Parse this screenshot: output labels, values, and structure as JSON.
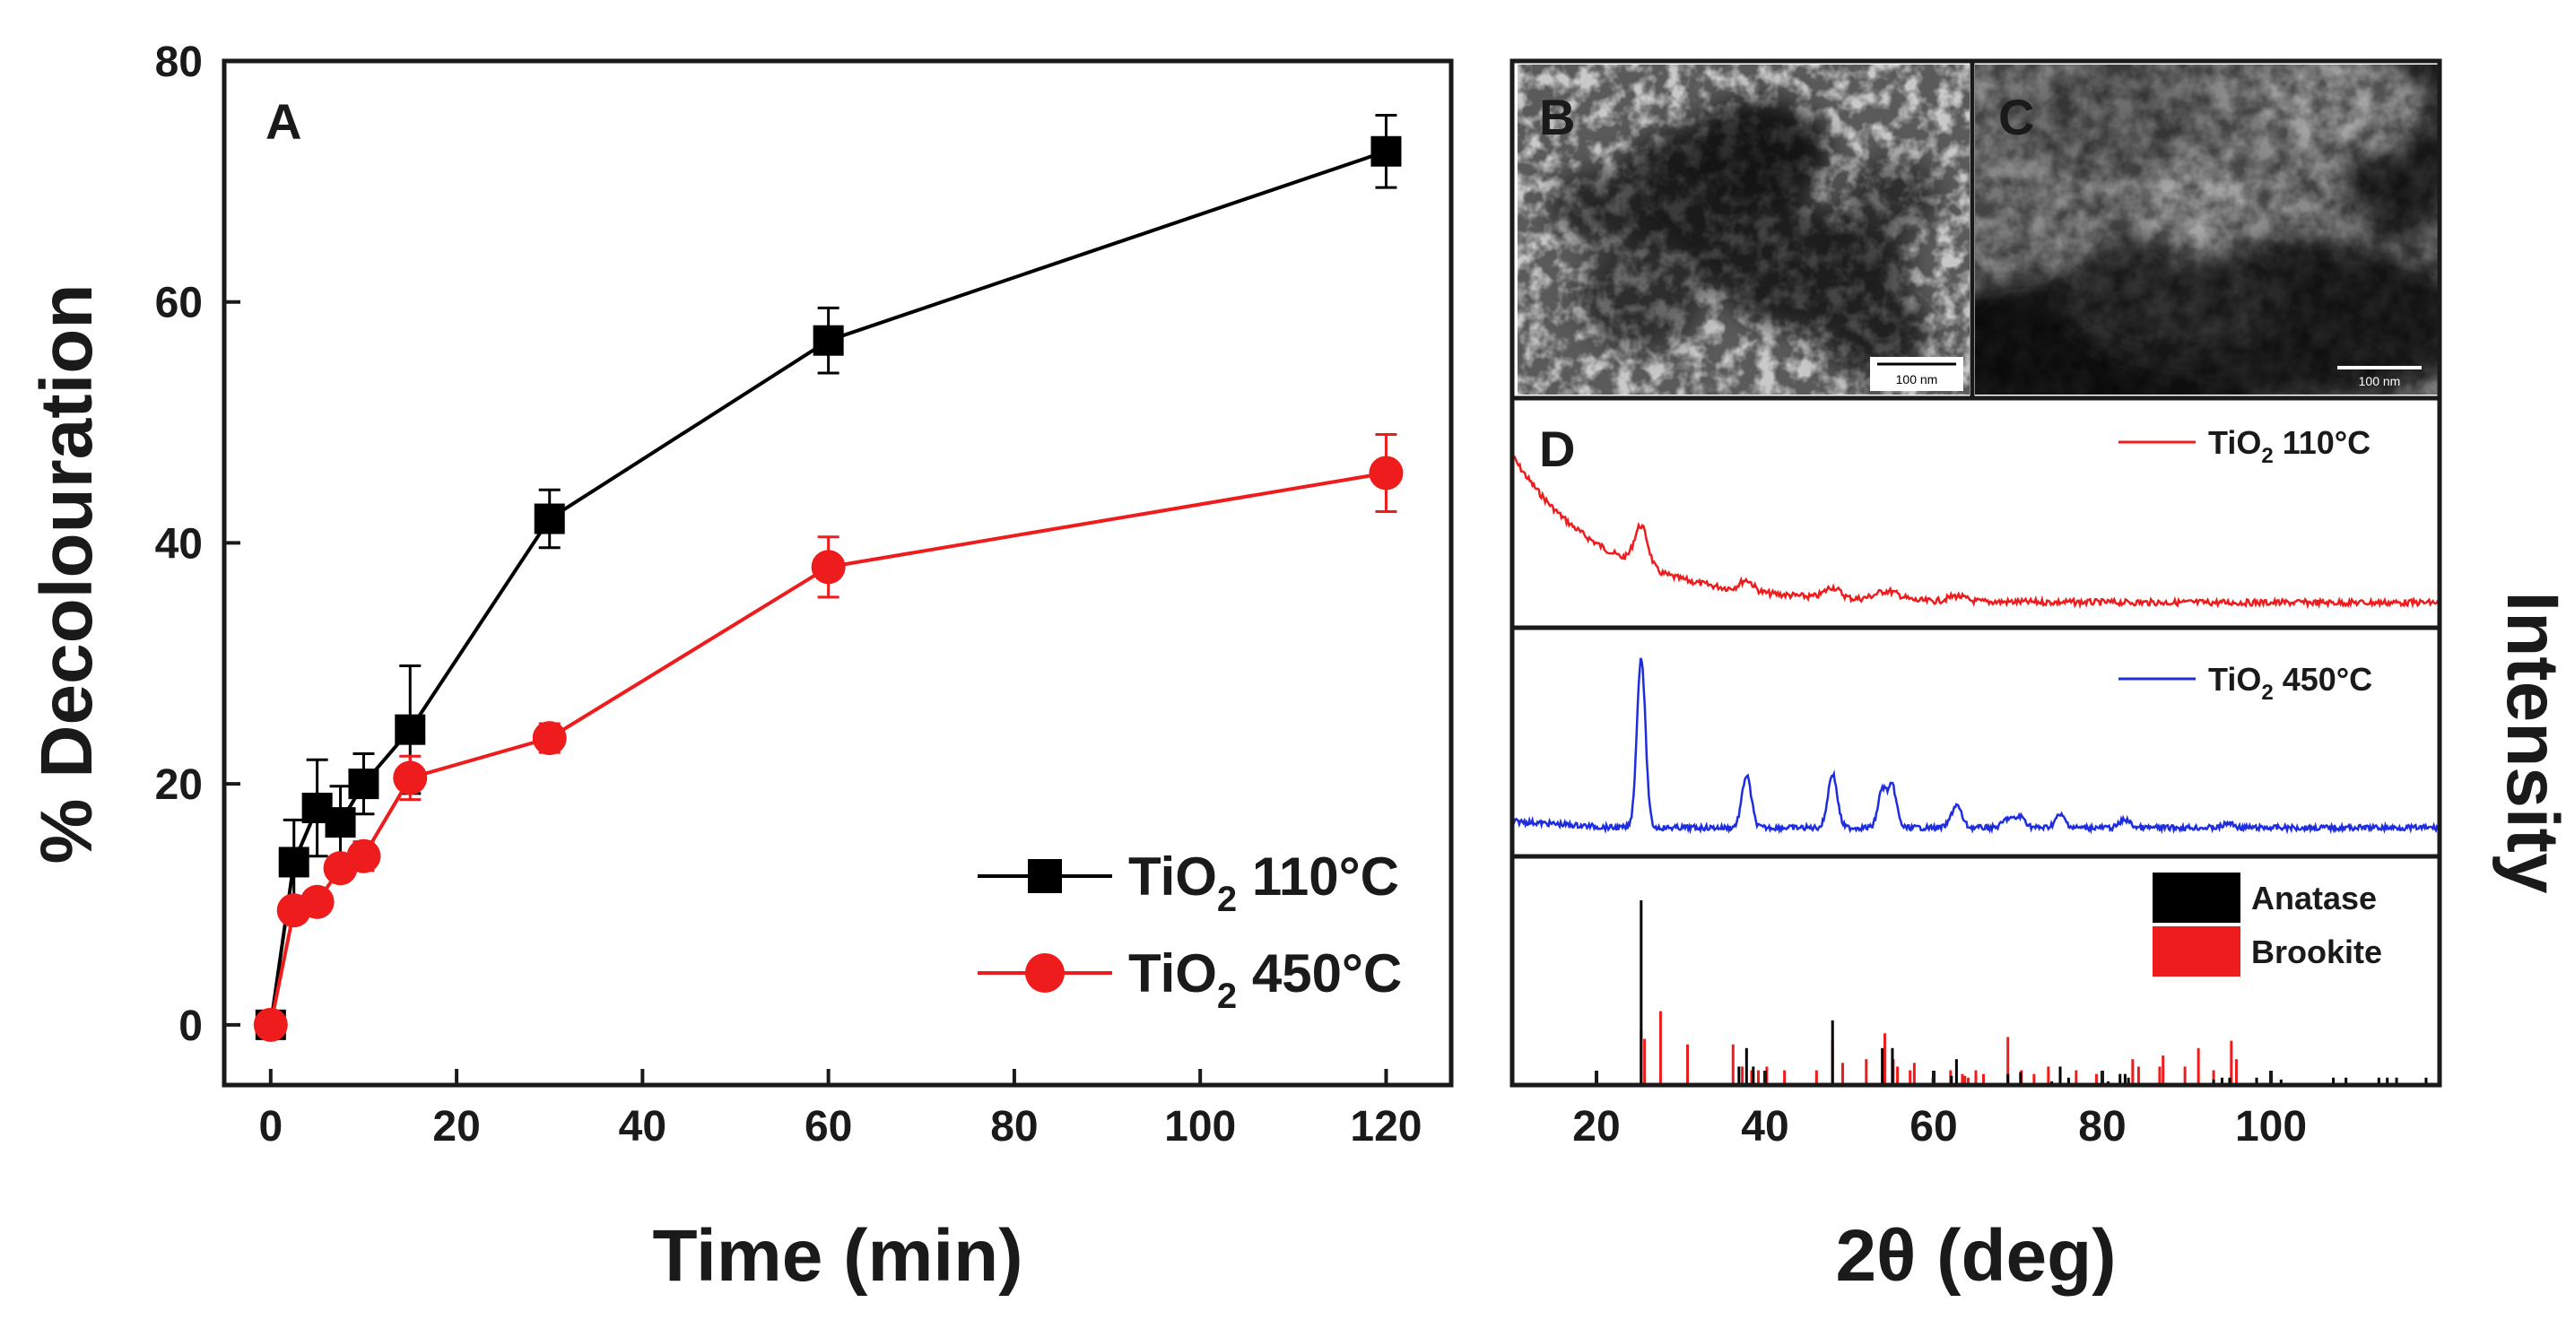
{
  "panels": {
    "A": "A",
    "B": "B",
    "C": "C",
    "D": "D"
  },
  "chart_data": [
    {
      "panel": "A",
      "type": "line",
      "xlabel": "Time (min)",
      "ylabel": "% Decolouration",
      "xlim": [
        -5,
        127
      ],
      "ylim": [
        -5,
        80
      ],
      "xticks": [
        0,
        20,
        40,
        60,
        80,
        100,
        120
      ],
      "yticks": [
        0,
        20,
        40,
        60,
        80
      ],
      "series": [
        {
          "name": "TiO2 110°C",
          "legend_prefix": "TiO",
          "legend_sub": "2",
          "legend_suffix": " 110°C",
          "marker": "square",
          "color": "#000000",
          "x": [
            0,
            2.5,
            5,
            7.5,
            10,
            15,
            30,
            60,
            120
          ],
          "y": [
            0,
            13.5,
            18,
            16.8,
            20,
            24.5,
            42,
            56.8,
            72.5
          ],
          "err": [
            0.5,
            3.5,
            4,
            3,
            2.5,
            5.3,
            2.4,
            2.7,
            3
          ]
        },
        {
          "name": "TiO2 450°C",
          "legend_prefix": "TiO",
          "legend_sub": "2",
          "legend_suffix": " 450°C",
          "marker": "circle",
          "color": "#ee1c1c",
          "x": [
            0,
            2.5,
            5,
            7.5,
            10,
            15,
            30,
            60,
            120
          ],
          "y": [
            0,
            9.5,
            10.2,
            13,
            14,
            20.5,
            23.8,
            38,
            45.8
          ],
          "err": [
            0.5,
            0.8,
            1,
            0.8,
            1.2,
            1.8,
            1.2,
            2.5,
            3.2
          ]
        }
      ]
    },
    {
      "panel": "D",
      "type": "line",
      "xlabel": "2θ (deg)",
      "ylabel": "Intensity",
      "xlim": [
        10,
        120
      ],
      "xticks": [
        20,
        40,
        60,
        80,
        100
      ],
      "series": [
        {
          "name": "TiO2 110°C",
          "legend_prefix": "TiO",
          "legend_sub": "2",
          "legend_suffix": " 110°C",
          "color": "#ee1c1c",
          "baseline_note": "decaying background, broad anatase peaks",
          "peaks_2theta": [
            25.3,
            37.8,
            48.0,
            54.5,
            62.7
          ]
        },
        {
          "name": "TiO2 450°C",
          "legend_prefix": "TiO",
          "legend_sub": "2",
          "legend_suffix": " 450°C",
          "color": "#1f2de0",
          "peaks_2theta": [
            25.3,
            37.8,
            48.0,
            53.9,
            55.1,
            62.7,
            68.8,
            70.3,
            75.0,
            82.7,
            95.0
          ]
        }
      ],
      "reference_patterns": [
        {
          "name": "Anatase",
          "color": "#000000",
          "lines": [
            [
              25.3,
              100
            ],
            [
              36.9,
              10
            ],
            [
              37.8,
              20
            ],
            [
              38.6,
              10
            ],
            [
              48.0,
              35
            ],
            [
              53.9,
              20
            ],
            [
              55.1,
              20
            ],
            [
              62.1,
              5
            ],
            [
              62.7,
              14
            ],
            [
              68.8,
              6
            ],
            [
              70.3,
              7
            ],
            [
              74.0,
              2
            ],
            [
              75.0,
              10
            ],
            [
              76.0,
              4
            ],
            [
              80.7,
              2
            ],
            [
              82.1,
              6
            ],
            [
              82.7,
              6
            ],
            [
              83.1,
              4
            ],
            [
              93.2,
              3
            ],
            [
              94.2,
              4
            ],
            [
              95.1,
              4
            ],
            [
              98.3,
              4
            ],
            [
              101.2,
              3
            ],
            [
              107.4,
              4
            ],
            [
              108.9,
              4
            ],
            [
              112.8,
              4
            ],
            [
              113.8,
              4
            ],
            [
              114.9,
              4
            ],
            [
              118.4,
              4
            ]
          ]
        },
        {
          "name": "Brookite",
          "color": "#ee1c1c",
          "lines": [
            [
              25.3,
              30
            ],
            [
              25.7,
              25
            ],
            [
              27.6,
              40
            ],
            [
              30.8,
              22
            ],
            [
              36.2,
              22
            ],
            [
              37.3,
              10
            ],
            [
              38.4,
              8
            ],
            [
              39.2,
              8
            ],
            [
              40.2,
              10
            ],
            [
              42.3,
              8
            ],
            [
              46.1,
              8
            ],
            [
              48.0,
              24
            ],
            [
              49.2,
              12
            ],
            [
              52.0,
              14
            ],
            [
              54.2,
              28
            ],
            [
              55.2,
              14
            ],
            [
              55.7,
              10
            ],
            [
              57.2,
              8
            ],
            [
              57.7,
              12
            ],
            [
              59.9,
              4
            ],
            [
              62.0,
              8
            ],
            [
              63.4,
              6
            ],
            [
              63.7,
              5
            ],
            [
              64.1,
              4
            ],
            [
              65.0,
              8
            ],
            [
              65.9,
              6
            ],
            [
              68.8,
              26
            ],
            [
              70.4,
              8
            ],
            [
              71.9,
              6
            ],
            [
              73.6,
              10
            ],
            [
              76.9,
              8
            ],
            [
              79.3,
              6
            ],
            [
              83.6,
              14
            ],
            [
              84.3,
              10
            ],
            [
              86.8,
              10
            ],
            [
              87.2,
              16
            ],
            [
              89.8,
              10
            ],
            [
              91.4,
              20
            ],
            [
              93.2,
              8
            ],
            [
              95.3,
              24
            ],
            [
              95.9,
              14
            ]
          ]
        }
      ]
    }
  ],
  "micrographs": [
    {
      "panel": "B",
      "scale_bar": "100 nm"
    },
    {
      "panel": "C",
      "scale_bar": "100 nm"
    }
  ]
}
